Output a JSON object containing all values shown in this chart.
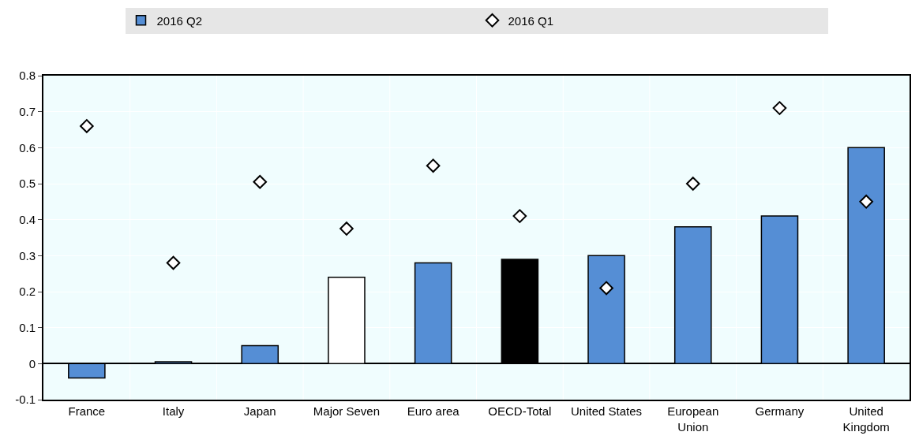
{
  "chart_data": {
    "type": "bar",
    "categories": [
      "France",
      "Italy",
      "Japan",
      "Major Seven",
      "Euro area",
      "OECD-Total",
      "United States",
      "European Union",
      "Germany",
      "United Kingdom"
    ],
    "series": [
      {
        "name": "2016 Q2",
        "colors": [
          "#558ed5",
          "#558ed5",
          "#558ed5",
          "#ffffff",
          "#558ed5",
          "#000000",
          "#558ed5",
          "#558ed5",
          "#558ed5",
          "#558ed5"
        ],
        "values": [
          -0.04,
          0.005,
          0.05,
          0.24,
          0.28,
          0.29,
          0.3,
          0.38,
          0.41,
          0.6
        ]
      },
      {
        "name": "2016 Q1",
        "type": "scatter",
        "marker": "diamond",
        "color": "#ffffff",
        "values": [
          0.66,
          0.28,
          0.505,
          0.375,
          0.55,
          0.41,
          0.21,
          0.5,
          0.71,
          0.45
        ]
      }
    ],
    "ylim": [
      -0.1,
      0.8
    ],
    "yticks": [
      -0.1,
      0,
      0.1,
      0.2,
      0.3,
      0.4,
      0.5,
      0.6,
      0.7,
      0.8
    ],
    "grid": true,
    "legend": "top"
  }
}
